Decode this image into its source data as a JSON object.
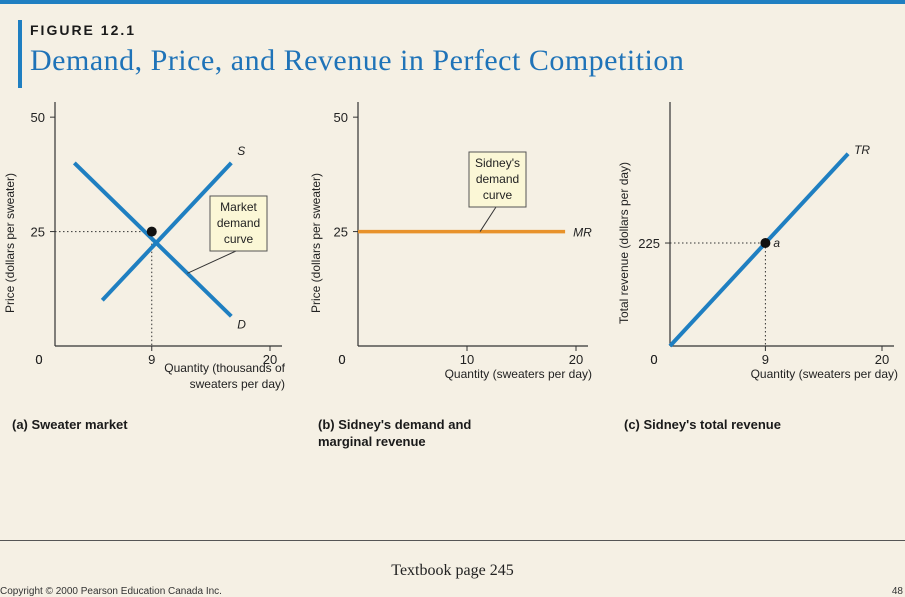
{
  "figure": {
    "label": "FIGURE 12.1",
    "title": "Demand, Price, and Revenue in Perfect Competition"
  },
  "colors": {
    "accent": "#1f7fc1",
    "mr_line": "#e8922a",
    "background": "#f5f0e4",
    "callout_bg": "#fbf7d6"
  },
  "chart_data": [
    {
      "type": "line",
      "caption": "(a) Sweater market",
      "ylabel": "Price (dollars per sweater)",
      "xlabel": "Quantity (thousands of sweaters per day)",
      "xlim": [
        0,
        20
      ],
      "ylim": [
        0,
        52
      ],
      "xticks": [
        {
          "value": 0,
          "label": "0"
        },
        {
          "value": 9,
          "label": "9"
        },
        {
          "value": 20,
          "label": "20"
        }
      ],
      "yticks": [
        {
          "value": 25,
          "label": "25"
        },
        {
          "value": 50,
          "label": "50"
        }
      ],
      "series": [
        {
          "name": "S",
          "x": [
            4.4,
            16.4
          ],
          "y": [
            10,
            40
          ]
        },
        {
          "name": "D",
          "x": [
            1.8,
            16.4
          ],
          "y": [
            40,
            6.5
          ]
        }
      ],
      "equilibrium": {
        "x": 9,
        "y": 25
      },
      "annotations": [
        {
          "text": "Market demand curve",
          "lines": [
            "Market",
            "demand",
            "curve"
          ]
        }
      ]
    },
    {
      "type": "line",
      "caption": "(b) Sidney's demand and marginal revenue",
      "ylabel": "Price (dollars per sweater)",
      "xlabel": "Quantity (sweaters per day)",
      "xlim": [
        0,
        20
      ],
      "ylim": [
        0,
        52
      ],
      "xticks": [
        {
          "value": 0,
          "label": "0"
        },
        {
          "value": 10,
          "label": "10"
        },
        {
          "value": 20,
          "label": "20"
        }
      ],
      "yticks": [
        {
          "value": 25,
          "label": "25"
        },
        {
          "value": 50,
          "label": "50"
        }
      ],
      "series": [
        {
          "name": "MR",
          "x": [
            0,
            19
          ],
          "y": [
            25,
            25
          ]
        }
      ],
      "annotations": [
        {
          "text": "Sidney's demand curve",
          "lines": [
            "Sidney's",
            "demand",
            "curve"
          ]
        }
      ]
    },
    {
      "type": "line",
      "caption": "(c) Sidney's total revenue",
      "ylabel": "Total revenue (dollars per day)",
      "xlabel": "Quantity (sweaters per day)",
      "xlim": [
        0,
        20
      ],
      "ylim": [
        0,
        520
      ],
      "xticks": [
        {
          "value": 0,
          "label": "0"
        },
        {
          "value": 9,
          "label": "9"
        },
        {
          "value": 20,
          "label": "20"
        }
      ],
      "yticks": [
        {
          "value": 225,
          "label": "225"
        }
      ],
      "series": [
        {
          "name": "TR",
          "x": [
            0,
            16.8
          ],
          "y": [
            0,
            420
          ]
        }
      ],
      "point": {
        "label": "a",
        "x": 9,
        "y": 225
      }
    }
  ],
  "footer": {
    "page_ref": "Textbook page 245",
    "copyright": "Copyright © 2000 Pearson Education Canada Inc.",
    "page_number": "48"
  }
}
